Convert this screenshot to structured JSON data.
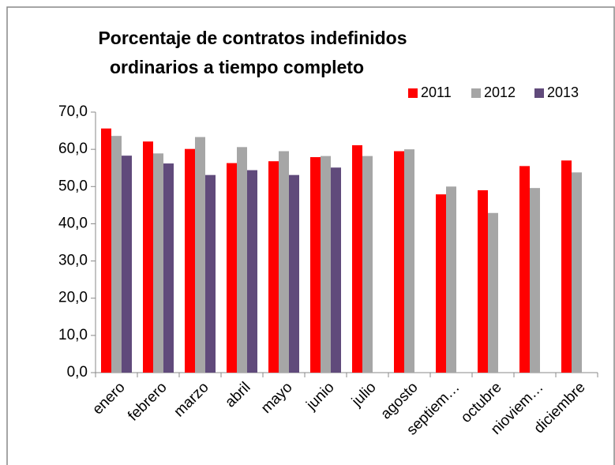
{
  "chart_data": {
    "type": "bar",
    "title": [
      "Porcentaje de contratos indefinidos",
      "ordinarios a tiempo completo"
    ],
    "categories": [
      "enero",
      "febrero",
      "marzo",
      "abril",
      "mayo",
      "junio",
      "julio",
      "agosto",
      "septiem…",
      "octubre",
      "nioviem…",
      "diciembre"
    ],
    "series": [
      {
        "name": "2011",
        "color": "#ff0000",
        "values": [
          65.6,
          62.1,
          60.1,
          56.3,
          56.8,
          57.9,
          61.1,
          59.5,
          47.9,
          49.0,
          55.5,
          57.0
        ]
      },
      {
        "name": "2012",
        "color": "#a6a6a6",
        "values": [
          63.6,
          58.9,
          63.3,
          60.6,
          59.5,
          58.2,
          58.2,
          60.0,
          50.0,
          42.9,
          49.6,
          53.8
        ]
      },
      {
        "name": "2013",
        "color": "#604a7b",
        "values": [
          58.3,
          56.2,
          53.1,
          54.4,
          53.1,
          55.1,
          null,
          null,
          null,
          null,
          null,
          null
        ]
      }
    ],
    "ylim": [
      0,
      70
    ],
    "yticks": [
      {
        "value": 0,
        "label": "0,0"
      },
      {
        "value": 10,
        "label": "10,0"
      },
      {
        "value": 20,
        "label": "20,0"
      },
      {
        "value": 30,
        "label": "30,0"
      },
      {
        "value": 40,
        "label": "40,0"
      },
      {
        "value": 50,
        "label": "50,0"
      },
      {
        "value": 60,
        "label": "60,0"
      },
      {
        "value": 70,
        "label": "70,0"
      }
    ],
    "grid": false,
    "legend": "top-right"
  }
}
